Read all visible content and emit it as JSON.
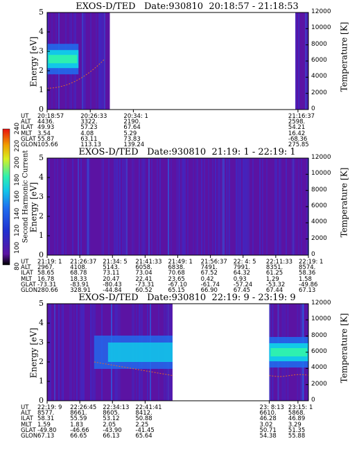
{
  "chart_data": [
    {
      "type": "heatmap",
      "title": "EXOS-D/TED   Date:930810  20:18:57 - 21:18:53",
      "ylabel": "Energy [eV]",
      "ylim": [
        0,
        5
      ],
      "yticks": [
        "0",
        "1",
        "2",
        "3",
        "4",
        "5"
      ],
      "right_label": "Temperature [K]",
      "right_ylim": [
        0,
        12000
      ],
      "right_ticks": [
        "0",
        "2000",
        "4000",
        "6000",
        "8000",
        "10000",
        "12000"
      ],
      "data_blocks": [
        [
          0,
          0.24
        ],
        [
          0.95,
          1.0
        ]
      ],
      "intense_band": {
        "x_range": [
          0,
          0.12
        ],
        "energy": 2.6
      },
      "ephemeris_labels": [
        "UT",
        "ALT",
        "ILAT",
        "MLT",
        "GLAT",
        "GLON"
      ],
      "ephemeris": [
        {
          "pos": 0.0,
          "values": [
            "20:18:57",
            "4436.",
            "49.93",
            "3.54",
            "55.87",
            "105.66"
          ]
        },
        {
          "pos": 0.165,
          "values": [
            "20:26:33",
            "3322.",
            "57.23",
            "4.08",
            "63.11",
            "113.13"
          ]
        },
        {
          "pos": 0.33,
          "values": [
            "20:34: 1",
            "2190.",
            "67.64",
            "5.29",
            "73.83",
            "139.24"
          ]
        },
        {
          "pos": 0.96,
          "values": [
            "21:16:37",
            "2598.",
            "54.21",
            "16.42",
            "-68.36",
            "275.85"
          ]
        }
      ]
    },
    {
      "type": "heatmap",
      "title": "EXOS-D/TED   Date:930810  21:19: 1 - 22:19: 1",
      "ylabel": "Energy [eV]",
      "ylim": [
        0,
        5
      ],
      "yticks": [
        "0",
        "1",
        "2",
        "3",
        "4",
        "5"
      ],
      "right_label": "Temperature [K]",
      "right_ylim": [
        0,
        12000
      ],
      "right_ticks": [
        "0",
        "2000",
        "4000",
        "6000",
        "8000",
        "10000",
        "12000"
      ],
      "data_blocks": [
        [
          0,
          1.0
        ]
      ],
      "ephemeris_labels": [
        "UT",
        "ALT",
        "ILAT",
        "MLT",
        "GLAT",
        "GLON"
      ],
      "ephemeris": [
        {
          "pos": 0.0,
          "values": [
            "21:19: 1",
            "2967.",
            "58.65",
            "16.78",
            "-73.31",
            "280.66"
          ]
        },
        {
          "pos": 0.125,
          "values": [
            "21:26:37",
            "4108.",
            "68.78",
            "18.33",
            "-83.91",
            "328.91"
          ]
        },
        {
          "pos": 0.25,
          "values": [
            "21:34: 5",
            "5143.",
            "73.11",
            "20.47",
            "-80.43",
            "-44.84"
          ]
        },
        {
          "pos": 0.375,
          "values": [
            "21:41:33",
            "6058.",
            "73.04",
            "22.41",
            "-73.31",
            "60.52"
          ]
        },
        {
          "pos": 0.5,
          "values": [
            "21:49: 1",
            "6838.",
            "70.68",
            "23.65",
            "-67.10",
            "65.15"
          ]
        },
        {
          "pos": 0.625,
          "values": [
            "21:56:37",
            "7491.",
            "67.52",
            "0.42",
            "-61.74",
            "66.90"
          ]
        },
        {
          "pos": 0.75,
          "values": [
            "22: 4: 5",
            "7991.",
            "64.32",
            "0.93",
            "-57.24",
            "67.45"
          ]
        },
        {
          "pos": 0.875,
          "values": [
            "22:11:33",
            "8351.",
            "61.25",
            "1.29",
            "-53.32",
            "67.44"
          ]
        },
        {
          "pos": 1.0,
          "values": [
            "22:19: 1",
            "8574.",
            "58.36",
            "1.58",
            "-49.86",
            "67.13"
          ]
        }
      ]
    },
    {
      "type": "heatmap",
      "title": "EXOS-D/TED   Date:930810  22:19: 9 - 23:19: 9",
      "ylabel": "Energy [eV]",
      "ylim": [
        0,
        5
      ],
      "yticks": [
        "0",
        "1",
        "2",
        "3",
        "4",
        "5"
      ],
      "right_label": "Temperature [K]",
      "right_ylim": [
        0,
        12000
      ],
      "right_ticks": [
        "0",
        "2000",
        "4000",
        "6000",
        "8000",
        "10000",
        "12000"
      ],
      "data_blocks": [
        [
          0,
          0.48
        ],
        [
          0.85,
          1.0
        ]
      ],
      "intense_band": {
        "x_range": [
          0.85,
          1.0
        ],
        "energy": 2.5
      },
      "ephemeris_labels": [
        "UT",
        "ALT",
        "ILAT",
        "MLT",
        "GLAT",
        "GLON"
      ],
      "ephemeris": [
        {
          "pos": 0.0,
          "values": [
            "22:19: 9",
            "8577.",
            "58.31",
            "1.59",
            "-49.80",
            "67.13"
          ]
        },
        {
          "pos": 0.125,
          "values": [
            "22:26:45",
            "8661.",
            "55.59",
            "1.83",
            "-46.66",
            "66.65"
          ]
        },
        {
          "pos": 0.25,
          "values": [
            "22:34:13",
            "8605.",
            "53.12",
            "2.05",
            "-43.90",
            "66.13"
          ]
        },
        {
          "pos": 0.375,
          "values": [
            "22:41:41",
            "8412.",
            "50.88",
            "2.25",
            "-41.45",
            "65.64"
          ]
        },
        {
          "pos": 0.85,
          "values": [
            "23: 8:13",
            "6610.",
            "46.28",
            "3.02",
            "50.71",
            "54.38"
          ]
        },
        {
          "pos": 0.96,
          "values": [
            "23:15: 1",
            "5868.",
            "46.89",
            "3.29",
            "51.35",
            "55.88"
          ]
        }
      ]
    }
  ],
  "colorbar": {
    "label": "Second Harmonic Current",
    "ticks": [
      "80",
      "100",
      "120",
      "140",
      "160",
      "180",
      "200",
      "220",
      "240"
    ]
  },
  "colors": {
    "background_fill": "#5b13a3",
    "low": "#3a2cc8",
    "mid": "#1f6ef0",
    "high": "#12c8e8",
    "peak": "#2ef0b0",
    "temperature_trace": "#e06a2a"
  }
}
